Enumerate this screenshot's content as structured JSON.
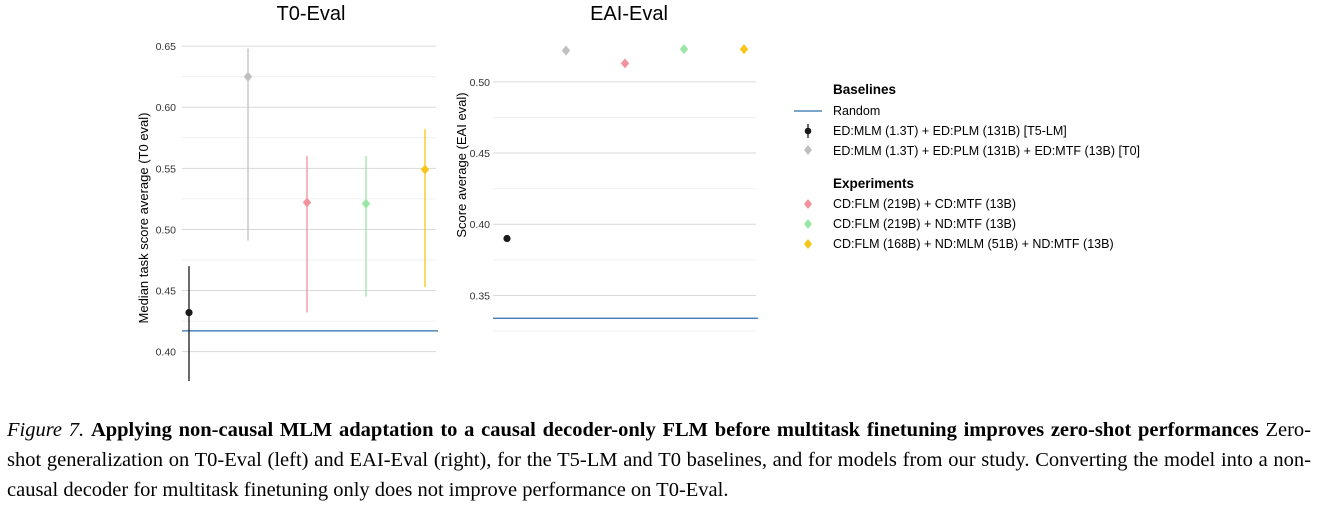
{
  "colors": {
    "random_line": "#2e6fb0",
    "t5lm": "#1a1a1a",
    "t0": "#c0c0c0",
    "exp_cd": "#f2929c",
    "exp_nd": "#9ae6a6",
    "exp_mlm": "#f5c518",
    "grid": "#d9d9d9",
    "text": "#000000"
  },
  "chart_data": [
    {
      "type": "scatter",
      "title": "T0-Eval",
      "ylabel": "Median task score average (T0 eval)",
      "xlabel": "",
      "ylim": [
        0.376,
        0.655
      ],
      "yticks": [
        "0.40",
        "0.45",
        "0.50",
        "0.55",
        "0.60",
        "0.65"
      ],
      "ytick_values": [
        0.4,
        0.45,
        0.5,
        0.55,
        0.6,
        0.65
      ],
      "grid": true,
      "random_baseline": 0.417,
      "points": [
        {
          "series": "t5lm",
          "value": 0.432,
          "low": 0.376,
          "high": 0.47
        },
        {
          "series": "t0",
          "value": 0.625,
          "low": 0.491,
          "high": 0.648
        },
        {
          "series": "exp_cd",
          "value": 0.522,
          "low": 0.432,
          "high": 0.56
        },
        {
          "series": "exp_nd",
          "value": 0.521,
          "low": 0.445,
          "high": 0.56
        },
        {
          "series": "exp_mlm",
          "value": 0.549,
          "low": 0.453,
          "high": 0.582
        }
      ]
    },
    {
      "type": "scatter",
      "title": "EAI-Eval",
      "ylabel": "Score average (EAI eval)",
      "xlabel": "",
      "ylim": [
        0.318,
        0.528
      ],
      "yticks": [
        "0.35",
        "0.40",
        "0.45",
        "0.50"
      ],
      "ytick_values": [
        0.35,
        0.4,
        0.45,
        0.5
      ],
      "grid": true,
      "random_baseline": 0.334,
      "points": [
        {
          "series": "t5lm",
          "value": 0.39
        },
        {
          "series": "t0",
          "value": 0.522
        },
        {
          "series": "exp_cd",
          "value": 0.513
        },
        {
          "series": "exp_nd",
          "value": 0.523
        },
        {
          "series": "exp_mlm",
          "value": 0.523
        }
      ]
    }
  ],
  "legend": {
    "placement": "right",
    "baselines_title": "Baselines",
    "experiments_title": "Experiments",
    "random": "Random",
    "t5lm": "ED:MLM (1.3T) + ED:PLM (131B) [T5-LM]",
    "t0": "ED:MLM (1.3T) + ED:PLM (131B) + ED:MTF (13B) [T0]",
    "exp_cd": "CD:FLM (219B) + CD:MTF (13B)",
    "exp_nd": "CD:FLM (219B) + ND:MTF (13B)",
    "exp_mlm": "CD:FLM (168B) + ND:MLM (51B) + ND:MTF (13B)"
  },
  "caption": {
    "label": "Figure 7.",
    "title": "Applying non-causal MLM adaptation to a causal decoder-only FLM before multitask finetuning improves zero-shot performances",
    "body": "Zero-shot generalization on T0-Eval (left) and EAI-Eval (right), for the T5-LM and T0 baselines, and for models from our study. Converting the model into a non-causal decoder for multitask finetuning only does not improve performance on T0-Eval."
  }
}
